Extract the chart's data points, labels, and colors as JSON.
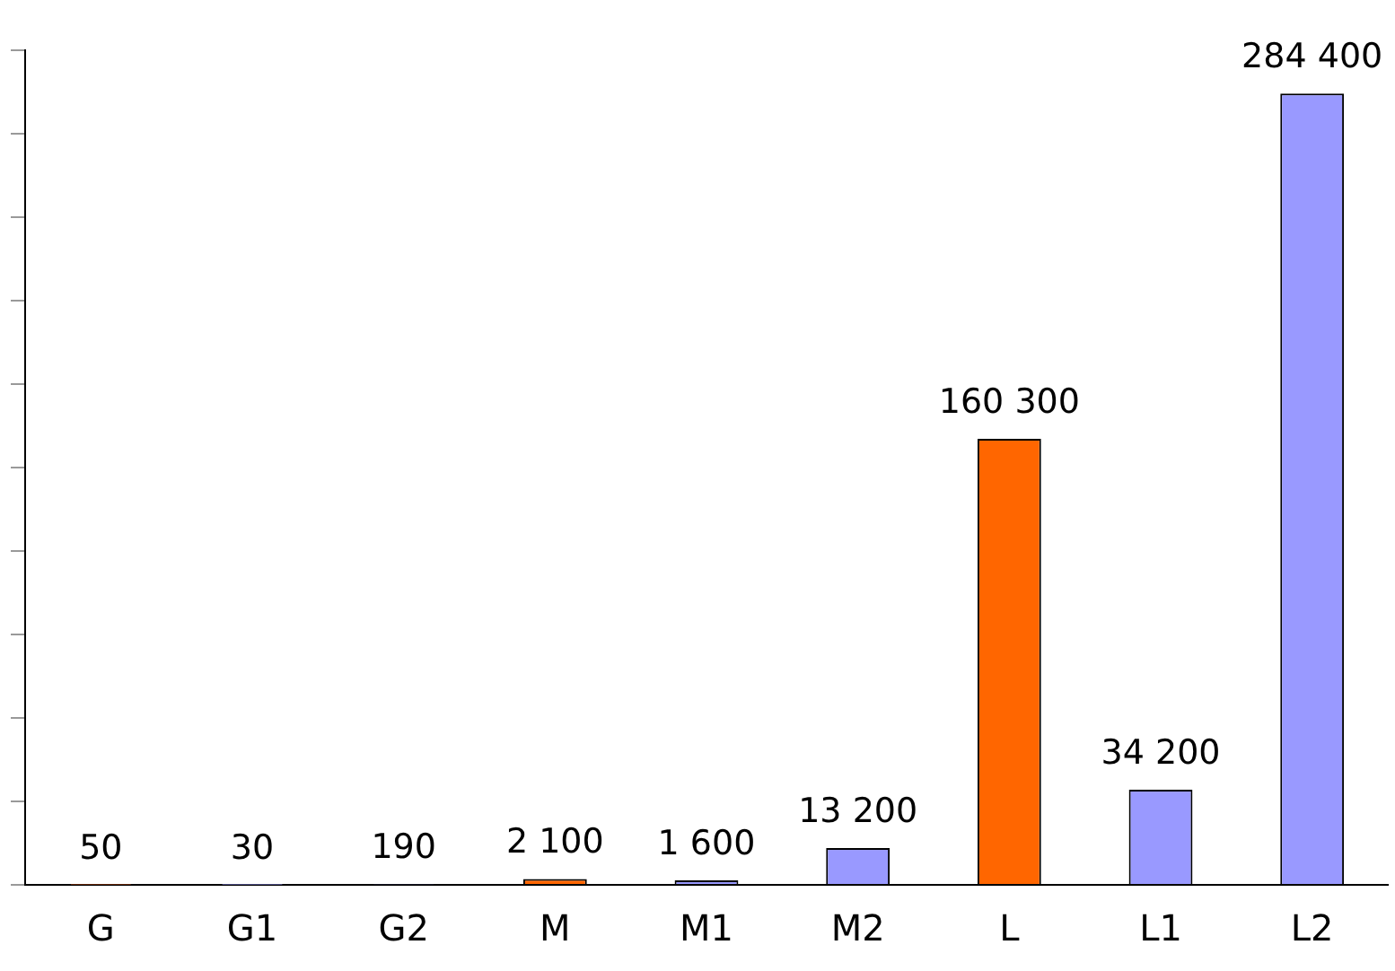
{
  "chart_data": {
    "type": "bar",
    "categories": [
      "G",
      "G1",
      "G2",
      "M",
      "M1",
      "M2",
      "L",
      "L1",
      "L2"
    ],
    "values": [
      50,
      30,
      190,
      2100,
      1600,
      13200,
      160300,
      34200,
      284400
    ],
    "colors": [
      "#ff6600",
      "#9999ff",
      "#9999ff",
      "#ff6600",
      "#9999ff",
      "#9999ff",
      "#ff6600",
      "#9999ff",
      "#9999ff"
    ],
    "value_labels": [
      "50",
      "30",
      "190",
      "2 100",
      "1 600",
      "13 200",
      "160 300",
      "34 200",
      "284 400"
    ],
    "ylim": [
      0,
      300000
    ],
    "yticks": [
      {
        "value": 0,
        "label": null
      },
      {
        "value": 30000,
        "label": null
      },
      {
        "value": 60000,
        "label": null
      },
      {
        "value": 90000,
        "label": null
      },
      {
        "value": 120000,
        "label": null
      },
      {
        "value": 150000,
        "label": null
      },
      {
        "value": 180000,
        "label": null
      },
      {
        "value": 210000,
        "label": null
      },
      {
        "value": 240000,
        "label": null
      },
      {
        "value": 270000,
        "label": null
      },
      {
        "value": 300000,
        "label": null
      }
    ],
    "tick_labels": "x",
    "grid": false,
    "legend": false
  }
}
